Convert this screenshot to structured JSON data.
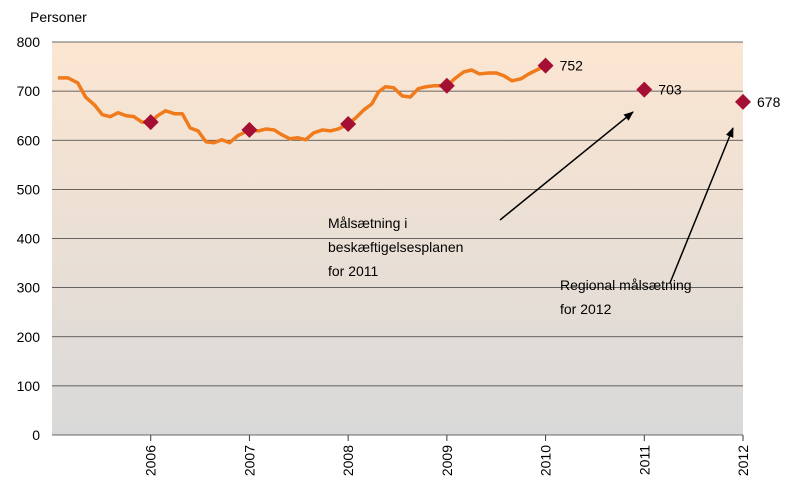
{
  "chart_data": {
    "type": "line",
    "y_label": "Personer",
    "xlim": [
      2005,
      2012
    ],
    "xticks": [
      2006,
      2007,
      2008,
      2009,
      2010,
      2011,
      2012
    ],
    "ylim": [
      0,
      800
    ],
    "yticks": [
      0,
      100,
      200,
      300,
      400,
      500,
      600,
      700,
      800
    ],
    "grid": true,
    "series": [
      {
        "color": "#f07b1c",
        "x": [
          2005.06,
          2005.16,
          2005.26,
          2005.34,
          2005.43,
          2005.51,
          2005.59,
          2005.67,
          2005.75,
          2005.83,
          2005.91,
          2006,
          2006.07,
          2006.15,
          2006.24,
          2006.32,
          2006.4,
          2006.48,
          2006.56,
          2006.64,
          2006.72,
          2006.8,
          2006.88,
          2007,
          2007.09,
          2007.17,
          2007.25,
          2007.33,
          2007.41,
          2007.49,
          2007.57,
          2007.65,
          2007.74,
          2007.82,
          2007.9,
          2008,
          2008.08,
          2008.16,
          2008.24,
          2008.31,
          2008.38,
          2008.46,
          2008.55,
          2008.63,
          2008.71,
          2008.79,
          2008.87,
          2009,
          2009.09,
          2009.17,
          2009.25,
          2009.33,
          2009.42,
          2009.5,
          2009.58,
          2009.66,
          2009.75,
          2009.83,
          2009.91,
          2010
        ],
        "values": [
          727,
          727,
          717,
          688,
          672,
          652,
          648,
          656,
          650,
          648,
          637,
          637,
          650,
          660,
          654,
          654,
          625,
          619,
          597,
          595,
          601,
          595,
          609,
          621,
          619,
          623,
          621,
          611,
          603,
          605,
          601,
          615,
          621,
          619,
          623,
          633,
          646,
          662,
          674,
          699,
          709,
          707,
          690,
          688,
          705,
          709,
          711,
          711,
          727,
          739,
          743,
          735,
          737,
          737,
          731,
          721,
          725,
          735,
          743,
          752
        ]
      },
      {
        "color": "#a50f33",
        "marker": "diamond",
        "x": [
          2006,
          2007,
          2008,
          2009,
          2010,
          2011,
          2012
        ],
        "values": [
          637,
          621,
          633,
          711,
          752,
          703,
          678
        ],
        "value_labels": [
          null,
          null,
          null,
          null,
          "752",
          "703",
          "678"
        ]
      }
    ],
    "annotations": [
      {
        "lines": [
          "Målsætning i",
          "beskæftigelsesplanen",
          "for 2011"
        ]
      },
      {
        "lines": [
          "Regional målsætning",
          "for 2012"
        ]
      }
    ]
  }
}
